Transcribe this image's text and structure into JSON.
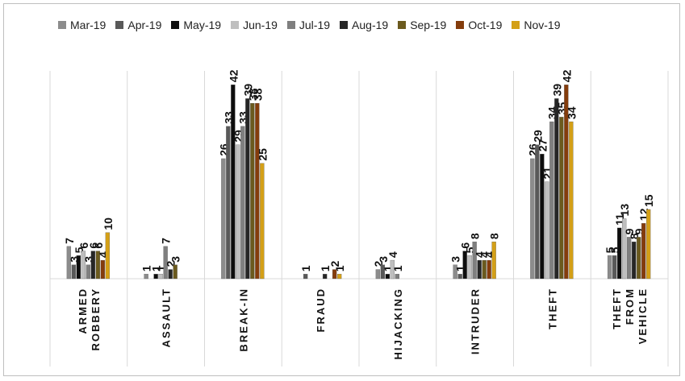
{
  "chart_data": {
    "type": "bar",
    "categories": [
      [
        "ARMED",
        "ROBBERY"
      ],
      [
        "ASSAULT"
      ],
      [
        "BREAK-IN"
      ],
      [
        "FRAUD"
      ],
      [
        "HIJACKING"
      ],
      [
        "INTRUDER"
      ],
      [
        "THEFT"
      ],
      [
        "THEFT",
        "FROM",
        "VEHICLE"
      ]
    ],
    "series": [
      {
        "name": "Mar-19",
        "color": "#8c8c8c",
        "values": [
          7,
          1,
          26,
          null,
          2,
          3,
          26,
          5
        ]
      },
      {
        "name": "Apr-19",
        "color": "#595959",
        "values": [
          3,
          null,
          33,
          1,
          3,
          1,
          29,
          5
        ]
      },
      {
        "name": "May-19",
        "color": "#0d0d0d",
        "values": [
          5,
          1,
          42,
          null,
          1,
          6,
          27,
          11
        ]
      },
      {
        "name": "Jun-19",
        "color": "#bfbfbf",
        "values": [
          6,
          1,
          29,
          null,
          4,
          5,
          21,
          13
        ]
      },
      {
        "name": "Jul-19",
        "color": "#7f7f7f",
        "values": [
          3,
          7,
          33,
          null,
          1,
          8,
          34,
          9
        ]
      },
      {
        "name": "Aug-19",
        "color": "#262626",
        "values": [
          6,
          2,
          39,
          1,
          null,
          4,
          39,
          8
        ]
      },
      {
        "name": "Sep-19",
        "color": "#6b5a1e",
        "values": [
          6,
          3,
          38,
          null,
          null,
          4,
          35,
          9
        ]
      },
      {
        "name": "Oct-19",
        "color": "#843c0c",
        "values": [
          4,
          null,
          38,
          2,
          null,
          4,
          42,
          12
        ]
      },
      {
        "name": "Nov-19",
        "color": "#d4a017",
        "values": [
          10,
          null,
          25,
          1,
          null,
          8,
          34,
          15
        ]
      }
    ],
    "ylim": [
      0,
      45
    ],
    "grid": false,
    "legend_position": "top"
  }
}
